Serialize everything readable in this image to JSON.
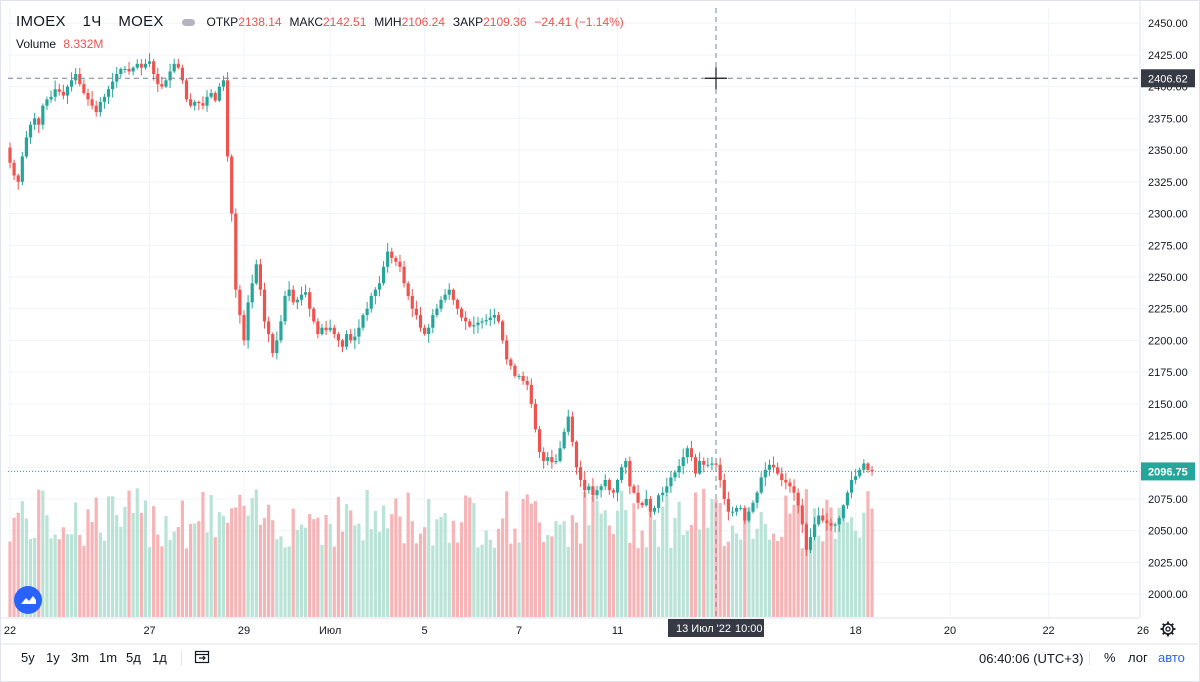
{
  "legend": {
    "symbol": "IMOEX",
    "interval": "1Ч",
    "exchange": "MOEX",
    "open_label": "ОТКР",
    "open_value": "2138.14",
    "high_label": "МАКС",
    "high_value": "2142.51",
    "low_label": "МИН",
    "low_value": "2106.24",
    "close_label": "ЗАКР",
    "close_value": "2109.36",
    "change_value": "−24.41 (−1.14%)"
  },
  "volume_legend": {
    "label": "Volume",
    "value": "8.332M"
  },
  "crosshair": {
    "price_label": "2406.62",
    "time_label": "13 Июл '22",
    "time_label_2": "10:00"
  },
  "last_price_label": "2096.75",
  "bottom_bar": {
    "ranges": [
      "5y",
      "1y",
      "3m",
      "1m",
      "5д",
      "1д"
    ],
    "clock": "06:40:06 (UTC+3)",
    "percent": "%",
    "log": "лог",
    "auto": "авто"
  },
  "colors": {
    "up": "#26a69a",
    "down": "#ef5350",
    "up_vol": "#b9e3d6",
    "down_vol": "#f6b4b6",
    "accent": "#2962ff",
    "last_line": "#26a69a"
  },
  "icons": {
    "goto_date": "calendar-goto-icon",
    "settings": "gear-icon",
    "logo": "tradingview-logo-icon"
  },
  "chart_data": {
    "type": "candlestick",
    "title": "IMOEX 1Ч MOEX",
    "xlabel": "",
    "ylabel": "",
    "ylim": [
      1982,
      2462
    ],
    "y_ticks": [
      2450,
      2425,
      2400,
      2375,
      2350,
      2325,
      2300,
      2275,
      2250,
      2225,
      2200,
      2175,
      2150,
      2125,
      2100,
      2075,
      2050,
      2025,
      2000
    ],
    "x_ticks": [
      {
        "label": "22",
        "index": 0
      },
      {
        "label": "27",
        "index": 34
      },
      {
        "label": "29",
        "index": 57
      },
      {
        "label": "Июл",
        "index": 78
      },
      {
        "label": "5",
        "index": 101
      },
      {
        "label": "7",
        "index": 124
      },
      {
        "label": "11",
        "index": 148
      },
      {
        "label": "18",
        "index": 206
      },
      {
        "label": "20",
        "index": 229
      },
      {
        "label": "22",
        "index": 253
      },
      {
        "label": "26",
        "index": 276
      }
    ],
    "closes": [
      2340,
      2330,
      2325,
      2345,
      2360,
      2370,
      2375,
      2370,
      2385,
      2390,
      2392,
      2398,
      2396,
      2393,
      2400,
      2405,
      2410,
      2402,
      2395,
      2390,
      2385,
      2380,
      2388,
      2392,
      2398,
      2404,
      2410,
      2414,
      2414,
      2412,
      2415,
      2418,
      2415,
      2418,
      2420,
      2410,
      2402,
      2400,
      2405,
      2412,
      2418,
      2415,
      2405,
      2390,
      2385,
      2388,
      2387,
      2385,
      2392,
      2395,
      2389,
      2400,
      2405,
      2345,
      2300,
      2240,
      2220,
      2200,
      2230,
      2245,
      2260,
      2240,
      2215,
      2205,
      2190,
      2200,
      2215,
      2235,
      2240,
      2230,
      2232,
      2236,
      2238,
      2225,
      2215,
      2205,
      2210,
      2208,
      2210,
      2205,
      2200,
      2195,
      2205,
      2200,
      2203,
      2210,
      2220,
      2225,
      2235,
      2240,
      2245,
      2258,
      2270,
      2265,
      2262,
      2258,
      2245,
      2235,
      2225,
      2220,
      2210,
      2205,
      2210,
      2220,
      2225,
      2232,
      2236,
      2240,
      2232,
      2225,
      2218,
      2215,
      2211,
      2212,
      2214,
      2215,
      2216,
      2218,
      2220,
      2215,
      2200,
      2185,
      2180,
      2172,
      2172,
      2168,
      2165,
      2150,
      2130,
      2112,
      2105,
      2108,
      2104,
      2105,
      2115,
      2128,
      2140,
      2120,
      2100,
      2090,
      2082,
      2085,
      2078,
      2082,
      2085,
      2090,
      2082,
      2080,
      2090,
      2100,
      2105,
      2085,
      2080,
      2072,
      2070,
      2075,
      2065,
      2068,
      2078,
      2080,
      2085,
      2092,
      2096,
      2101,
      2108,
      2115,
      2108,
      2095,
      2105,
      2102,
      2102,
      2103,
      2102,
      2090,
      2075,
      2065,
      2065,
      2068,
      2068,
      2058,
      2065,
      2072,
      2080,
      2092,
      2098,
      2102,
      2100,
      2095,
      2090,
      2088,
      2085,
      2080,
      2070,
      2055,
      2035,
      2045,
      2055,
      2062,
      2058,
      2056,
      2054,
      2055,
      2060,
      2070,
      2080,
      2090,
      2093,
      2098,
      2103,
      2098,
      2096.75
    ],
    "highs_lows_note": "approximate; each bar's high/low extends a few points beyond its open/close",
    "volume_note": "relative volume per bar (approximate)"
  }
}
